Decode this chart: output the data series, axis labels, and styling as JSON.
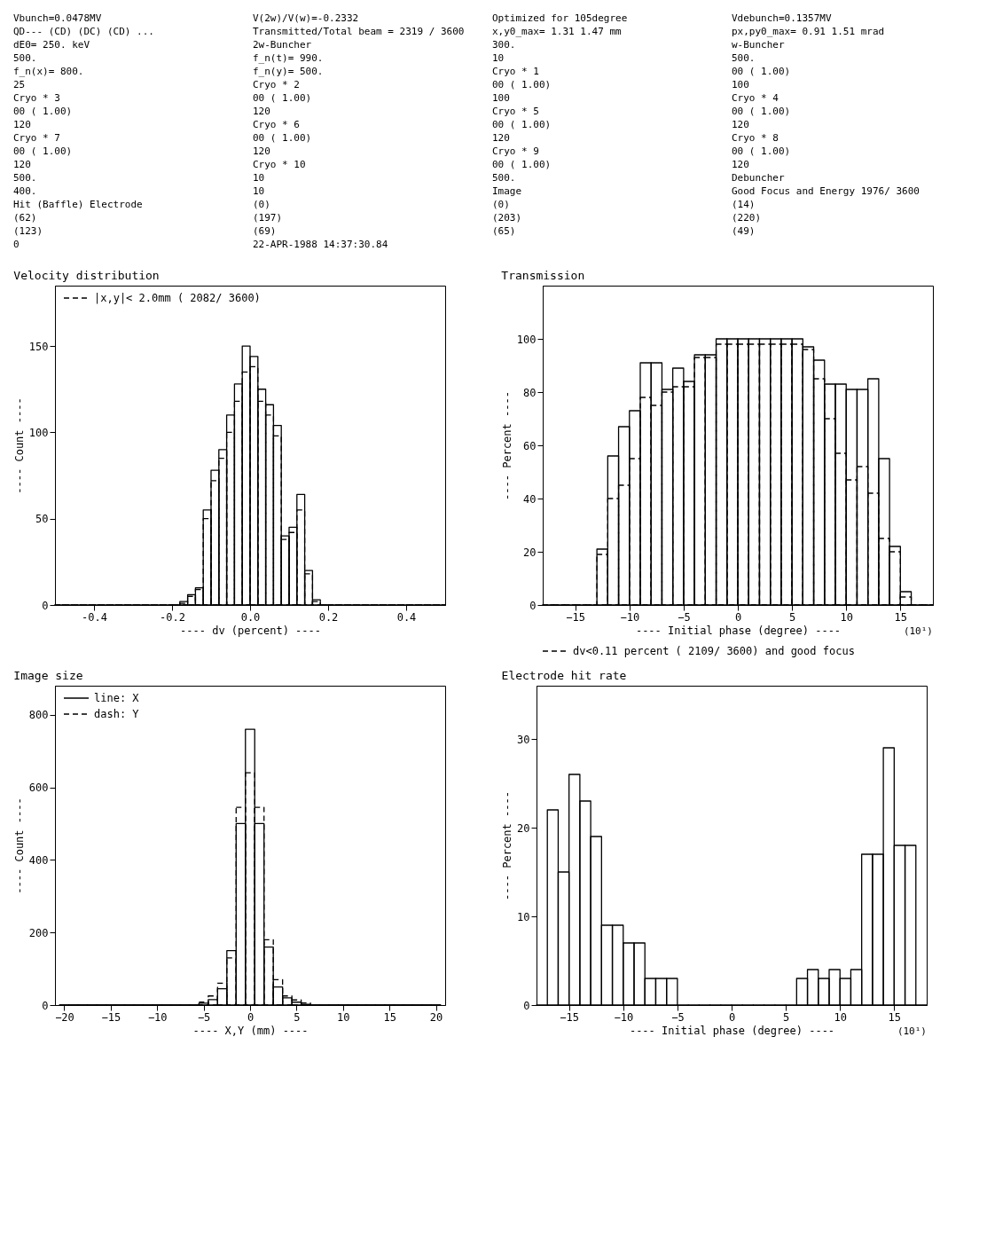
{
  "chart_data": [
    {
      "type": "other",
      "annotations": [
        "Vbunch=0.0478MV",
        "V(2w)/V(w)=-0.2332",
        "Optimized for 105degree",
        "Vdebunch=0.1357MV",
        "QD--- (CD) (DC) (CD) ...",
        "Transmitted/Total beam =  2319 / 3600",
        "x,y0_max= 1.31 1.47 mm",
        "px,py0_max= 0.91 1.51 mrad",
        "dE0= 250. keV",
        "2w-Buncher",
        "300.",
        "w-Buncher",
        "500.",
        "f_n(t)= 990.",
        "10",
        "500.",
        "f_n(x)= 800.",
        "f_n(y)= 500.",
        "Cryo * 1",
        "00 ( 1.00)",
        "25",
        "Cryo * 2",
        "00 ( 1.00)",
        "100",
        "Cryo * 3",
        "00 ( 1.00)",
        "100",
        "Cryo * 4",
        "00 ( 1.00)",
        "120",
        "Cryo * 5",
        "00 ( 1.00)",
        "120",
        "Cryo * 6",
        "00 ( 1.00)",
        "120",
        "Cryo * 7",
        "00 ( 1.00)",
        "120",
        "Cryo * 8",
        "00 ( 1.00)",
        "120",
        "Cryo * 9",
        "00 ( 1.00)",
        "120",
        "Cryo * 10",
        "00 ( 1.00)",
        "120",
        "500.",
        "10",
        "500.",
        "Debuncher",
        "400.",
        "10",
        "Image",
        "Good Focus and Energy 1976/ 3600",
        "Hit (Baffle) Electrode",
        "(0)",
        "(0)",
        "(14)",
        "(62)",
        "(197)",
        "(203)",
        "(220)",
        "(123)",
        "(69)",
        "(65)",
        "(49)",
        "0",
        "22-APR-1988 14:37:30.84"
      ]
    },
    {
      "type": "histogram",
      "title": "Velocity distribution",
      "xlabel": "---- dv (percent) ----",
      "ylabel": "---- Count ----",
      "bins": [
        -0.5,
        -0.2,
        -0.18,
        -0.16,
        -0.14,
        -0.12,
        -0.1,
        -0.08,
        -0.06,
        -0.04,
        -0.02,
        0,
        0.02,
        0.04,
        0.06,
        0.08,
        0.1,
        0.12,
        0.14,
        0.16,
        0.18,
        0.2,
        0.5
      ],
      "series": [
        {
          "color": "#000000",
          "line_style": "solid",
          "values": [
            0,
            0,
            2,
            6,
            10,
            55,
            78,
            90,
            110,
            128,
            150,
            144,
            125,
            116,
            104,
            40,
            45,
            64,
            20,
            3,
            0,
            0
          ]
        },
        {
          "name": "|x,y|< 2.0mm ( 2082/ 3600)",
          "color": "#000000",
          "line_style": "dashed",
          "values": [
            0,
            0,
            1,
            5,
            9,
            50,
            72,
            85,
            100,
            118,
            135,
            138,
            118,
            110,
            98,
            38,
            42,
            55,
            18,
            2,
            0,
            0
          ]
        }
      ],
      "xlim": [
        -0.5,
        0.5
      ],
      "xticks": [
        {
          "value": -0.4,
          "label": "-0.4"
        },
        {
          "value": -0.2,
          "label": "-0.2"
        },
        {
          "value": 0,
          "label": "0.0"
        },
        {
          "value": 0.2,
          "label": "0.2"
        },
        {
          "value": 0.4,
          "label": "0.4"
        }
      ],
      "ylim": [
        0,
        185
      ],
      "yticks": [
        0,
        50,
        100,
        150
      ],
      "legend": "top left"
    },
    {
      "type": "histogram",
      "title": "Transmission",
      "xlabel": "---- Initial phase (degree) ----",
      "ylabel": "---- Percent ----",
      "bins": [
        -18,
        -17,
        -16,
        -15,
        -14,
        -13,
        -12,
        -11,
        -10,
        -9,
        -8,
        -7,
        -6,
        -5,
        -4,
        -3,
        -2,
        -1,
        0,
        1,
        2,
        3,
        4,
        5,
        6,
        7,
        8,
        9,
        10,
        11,
        12,
        13,
        14,
        15,
        16,
        17,
        18
      ],
      "series": [
        {
          "color": "#000000",
          "line_style": "solid",
          "values": [
            0,
            0,
            0,
            0,
            0,
            21,
            56,
            67,
            73,
            91,
            91,
            81,
            89,
            84,
            94,
            94,
            100,
            100,
            100,
            100,
            100,
            100,
            100,
            100,
            97,
            92,
            83,
            83,
            81,
            81,
            85,
            55,
            22,
            5,
            0,
            0
          ]
        },
        {
          "name": "dv<0.11 percent ( 2109/ 3600) and good focus",
          "color": "#000000",
          "line_style": "dashed",
          "values": [
            0,
            0,
            0,
            0,
            0,
            19,
            40,
            45,
            55,
            78,
            75,
            80,
            82,
            82,
            93,
            93,
            98,
            98,
            98,
            98,
            98,
            98,
            98,
            98,
            96,
            85,
            70,
            57,
            47,
            52,
            42,
            25,
            20,
            3,
            0,
            0
          ]
        }
      ],
      "xlim": [
        -18,
        18
      ],
      "xticks": [
        -15,
        -10,
        -5,
        0,
        5,
        10,
        15
      ],
      "ylim": [
        0,
        120
      ],
      "yticks": [
        0,
        20,
        40,
        60,
        80,
        100
      ],
      "legend": "bottom",
      "annotations": [
        "(10¹)"
      ]
    },
    {
      "type": "histogram",
      "title": "Image size",
      "xlabel": "---- X,Y (mm) ----",
      "ylabel": "---- Count ----",
      "bins": [
        -20.5,
        -19.5,
        -18.5,
        -17.5,
        -16.5,
        -15.5,
        -14.5,
        -13.5,
        -12.5,
        -11.5,
        -10.5,
        -9.5,
        -8.5,
        -7.5,
        -6.5,
        -5.5,
        -4.5,
        -3.5,
        -2.5,
        -1.5,
        -0.5,
        0.5,
        1.5,
        2.5,
        3.5,
        4.5,
        5.5,
        6.5,
        7.5,
        8.5,
        9.5,
        10.5,
        11.5,
        12.5,
        13.5,
        14.5,
        15.5,
        16.5,
        17.5,
        18.5,
        19.5,
        20.5
      ],
      "series": [
        {
          "name": "line: X",
          "color": "#000000",
          "line_style": "solid",
          "values": [
            0,
            0,
            0,
            0,
            0,
            0,
            0,
            0,
            0,
            0,
            0,
            0,
            0,
            0,
            0,
            5,
            15,
            45,
            150,
            500,
            760,
            500,
            160,
            50,
            20,
            8,
            2,
            0,
            0,
            0,
            0,
            0,
            0,
            0,
            0,
            0,
            0,
            0,
            0,
            0,
            0
          ]
        },
        {
          "name": "dash: Y",
          "color": "#000000",
          "line_style": "dashed",
          "values": [
            0,
            0,
            0,
            0,
            0,
            0,
            0,
            0,
            0,
            0,
            0,
            0,
            0,
            0,
            0,
            8,
            25,
            60,
            130,
            545,
            640,
            545,
            180,
            70,
            25,
            14,
            6,
            0,
            0,
            0,
            0,
            0,
            0,
            0,
            0,
            0,
            0,
            0,
            0,
            0,
            0
          ]
        }
      ],
      "xlim": [
        -21,
        21
      ],
      "xticks": [
        -20,
        -15,
        -10,
        -5,
        0,
        5,
        10,
        15,
        20
      ],
      "ylim": [
        0,
        880
      ],
      "yticks": [
        0,
        200,
        400,
        600,
        800
      ],
      "legend": "top left"
    },
    {
      "type": "histogram",
      "title": "Electrode hit rate",
      "xlabel": "---- Initial phase (degree) ----",
      "ylabel": "---- Percent ----",
      "bins": [
        -18,
        -17,
        -16,
        -15,
        -14,
        -13,
        -12,
        -11,
        -10,
        -9,
        -8,
        -7,
        -6,
        -5,
        -4,
        -3,
        -2,
        -1,
        0,
        1,
        2,
        3,
        4,
        5,
        6,
        7,
        8,
        9,
        10,
        11,
        12,
        13,
        14,
        15,
        16,
        17,
        18
      ],
      "series": [
        {
          "color": "#000000",
          "line_style": "solid",
          "values": [
            0,
            22,
            15,
            26,
            23,
            19,
            9,
            9,
            7,
            7,
            3,
            3,
            3,
            0,
            0,
            0,
            0,
            0,
            0,
            0,
            0,
            0,
            0,
            0,
            3,
            4,
            3,
            4,
            3,
            4,
            17,
            17,
            29,
            18,
            18,
            0
          ]
        }
      ],
      "xlim": [
        -18,
        18
      ],
      "xticks": [
        -15,
        -10,
        -5,
        0,
        5,
        10,
        15
      ],
      "ylim": [
        0,
        36
      ],
      "yticks": [
        0,
        10,
        20,
        30
      ],
      "annotations": [
        "(10¹)"
      ]
    }
  ]
}
